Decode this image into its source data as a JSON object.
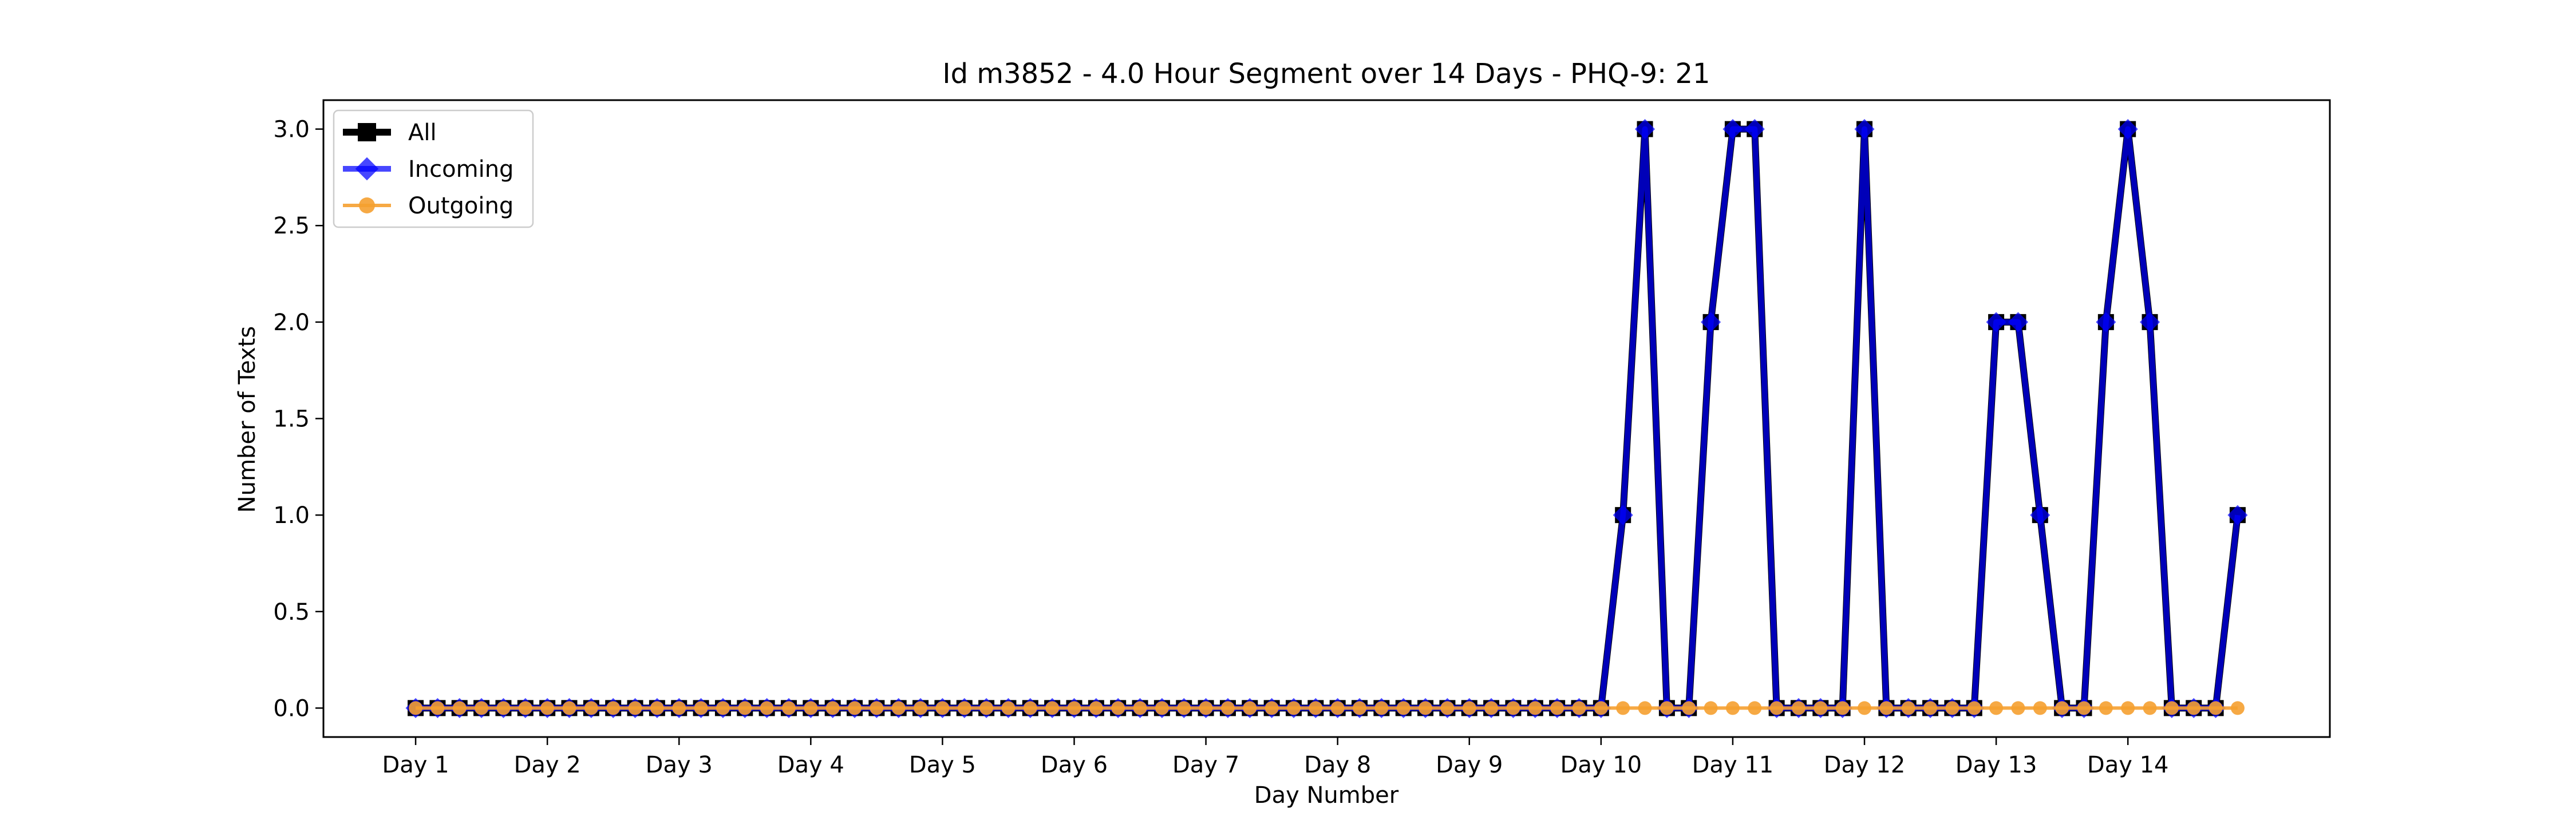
{
  "chart_data": {
    "type": "line",
    "title": "Id m3852 - 4.0 Hour Segment over 14 Days - PHQ-9: 21",
    "xlabel": "Day Number",
    "ylabel": "Number of Texts",
    "ylim": [
      -0.15,
      3.15
    ],
    "xlim": [
      -4.2,
      87.2
    ],
    "grid": false,
    "legend_position": "upper-left",
    "xticks": [
      {
        "value": 0,
        "label": "Day 1"
      },
      {
        "value": 6,
        "label": "Day 2"
      },
      {
        "value": 12,
        "label": "Day 3"
      },
      {
        "value": 18,
        "label": "Day 4"
      },
      {
        "value": 24,
        "label": "Day 5"
      },
      {
        "value": 30,
        "label": "Day 6"
      },
      {
        "value": 36,
        "label": "Day 7"
      },
      {
        "value": 42,
        "label": "Day 8"
      },
      {
        "value": 48,
        "label": "Day 9"
      },
      {
        "value": 54,
        "label": "Day 10"
      },
      {
        "value": 60,
        "label": "Day 11"
      },
      {
        "value": 66,
        "label": "Day 12"
      },
      {
        "value": 72,
        "label": "Day 13"
      },
      {
        "value": 78,
        "label": "Day 14"
      }
    ],
    "yticks": [
      {
        "value": 0.0,
        "label": "0.0"
      },
      {
        "value": 0.5,
        "label": "0.5"
      },
      {
        "value": 1.0,
        "label": "1.0"
      },
      {
        "value": 1.5,
        "label": "1.5"
      },
      {
        "value": 2.0,
        "label": "2.0"
      },
      {
        "value": 2.5,
        "label": "2.5"
      },
      {
        "value": 3.0,
        "label": "3.0"
      }
    ],
    "series": [
      {
        "name": "All",
        "color": "#000000",
        "marker": "square",
        "values": [
          0,
          0,
          0,
          0,
          0,
          0,
          0,
          0,
          0,
          0,
          0,
          0,
          0,
          0,
          0,
          0,
          0,
          0,
          0,
          0,
          0,
          0,
          0,
          0,
          0,
          0,
          0,
          0,
          0,
          0,
          0,
          0,
          0,
          0,
          0,
          0,
          0,
          0,
          0,
          0,
          0,
          0,
          0,
          0,
          0,
          0,
          0,
          0,
          0,
          0,
          0,
          0,
          0,
          0,
          0,
          1,
          3,
          0,
          0,
          2,
          3,
          3,
          0,
          0,
          0,
          0,
          3,
          0,
          0,
          0,
          0,
          0,
          2,
          2,
          1,
          0,
          0,
          2,
          3,
          2,
          0,
          0,
          0,
          1
        ]
      },
      {
        "name": "Incoming",
        "color": "#0000ff",
        "marker": "diamond",
        "values": [
          0,
          0,
          0,
          0,
          0,
          0,
          0,
          0,
          0,
          0,
          0,
          0,
          0,
          0,
          0,
          0,
          0,
          0,
          0,
          0,
          0,
          0,
          0,
          0,
          0,
          0,
          0,
          0,
          0,
          0,
          0,
          0,
          0,
          0,
          0,
          0,
          0,
          0,
          0,
          0,
          0,
          0,
          0,
          0,
          0,
          0,
          0,
          0,
          0,
          0,
          0,
          0,
          0,
          0,
          0,
          1,
          3,
          0,
          0,
          2,
          3,
          3,
          0,
          0,
          0,
          0,
          3,
          0,
          0,
          0,
          0,
          0,
          2,
          2,
          1,
          0,
          0,
          2,
          3,
          2,
          0,
          0,
          0,
          1
        ]
      },
      {
        "name": "Outgoing",
        "color": "#f5a030",
        "marker": "circle",
        "values": [
          0,
          0,
          0,
          0,
          0,
          0,
          0,
          0,
          0,
          0,
          0,
          0,
          0,
          0,
          0,
          0,
          0,
          0,
          0,
          0,
          0,
          0,
          0,
          0,
          0,
          0,
          0,
          0,
          0,
          0,
          0,
          0,
          0,
          0,
          0,
          0,
          0,
          0,
          0,
          0,
          0,
          0,
          0,
          0,
          0,
          0,
          0,
          0,
          0,
          0,
          0,
          0,
          0,
          0,
          0,
          0,
          0,
          0,
          0,
          0,
          0,
          0,
          0,
          0,
          0,
          0,
          0,
          0,
          0,
          0,
          0,
          0,
          0,
          0,
          0,
          0,
          0,
          0,
          0,
          0,
          0,
          0,
          0,
          0
        ]
      }
    ]
  }
}
